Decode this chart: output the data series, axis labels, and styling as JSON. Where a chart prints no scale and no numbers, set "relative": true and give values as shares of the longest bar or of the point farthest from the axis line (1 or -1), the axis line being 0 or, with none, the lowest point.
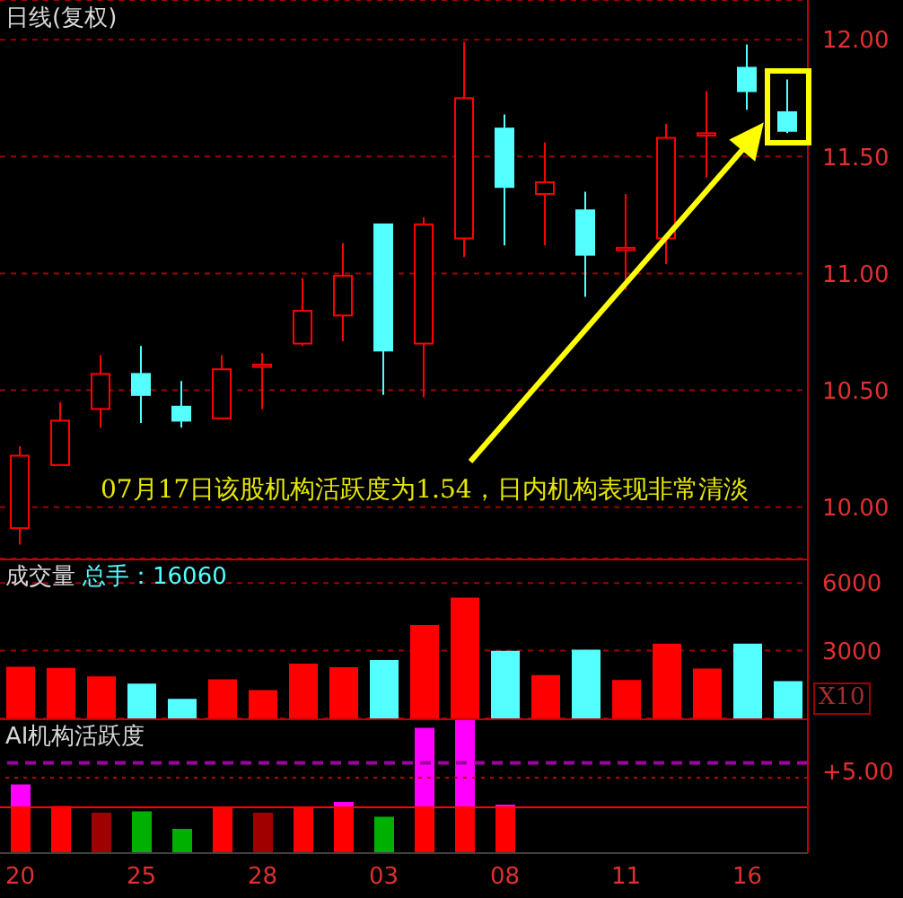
{
  "chart_data": [
    {
      "type": "candlestick",
      "title": "日线(复权)",
      "categories": [
        "20",
        null,
        null,
        "25",
        null,
        null,
        "28",
        null,
        null,
        "03",
        null,
        null,
        "08",
        null,
        null,
        "11",
        null,
        null,
        "16",
        null
      ],
      "ohlc": [
        [
          9.91,
          10.26,
          9.84,
          10.22
        ],
        [
          10.18,
          10.45,
          10.18,
          10.37
        ],
        [
          10.42,
          10.65,
          10.34,
          10.57
        ],
        [
          10.57,
          10.69,
          10.36,
          10.48
        ],
        [
          10.43,
          10.54,
          10.34,
          10.37
        ],
        [
          10.38,
          10.65,
          10.38,
          10.59
        ],
        [
          10.6,
          10.66,
          10.42,
          10.61
        ],
        [
          10.7,
          10.98,
          10.69,
          10.84
        ],
        [
          10.82,
          11.13,
          10.71,
          10.99
        ],
        [
          11.21,
          11.21,
          10.48,
          10.67
        ],
        [
          10.7,
          11.24,
          10.47,
          11.21
        ],
        [
          11.15,
          11.99,
          11.07,
          11.75
        ],
        [
          11.62,
          11.68,
          11.12,
          11.37
        ],
        [
          11.34,
          11.56,
          11.12,
          11.39
        ],
        [
          11.27,
          11.35,
          10.9,
          11.08
        ],
        [
          11.1,
          11.34,
          10.93,
          11.11
        ],
        [
          11.15,
          11.64,
          11.04,
          11.58
        ],
        [
          11.59,
          11.78,
          11.41,
          11.6
        ],
        [
          11.88,
          11.98,
          11.7,
          11.78
        ],
        [
          11.69,
          11.83,
          11.6,
          11.61
        ]
      ],
      "colors": [
        "#ff0000",
        "#ff0000",
        "#ff0000",
        "#54ffff",
        "#54ffff",
        "#ff0000",
        "#ff0000",
        "#ff0000",
        "#ff0000",
        "#54ffff",
        "#ff0000",
        "#ff0000",
        "#54ffff",
        "#ff0000",
        "#54ffff",
        "#ff0000",
        "#ff0000",
        "#ff0000",
        "#54ffff",
        "#54ffff"
      ],
      "ylim": [
        9.78,
        12.17
      ],
      "yticks": [
        {
          "value": 10,
          "label": "10.00"
        },
        {
          "value": 10.5,
          "label": "10.50"
        },
        {
          "value": 11,
          "label": "11.00"
        },
        {
          "value": 11.5,
          "label": "11.50"
        },
        {
          "value": 12,
          "label": "12.00"
        }
      ],
      "grid": "y",
      "tick_labels": "y",
      "annotations": [
        "07月17日该股机构活跃度为1.54，日内机构表现非常清淡"
      ]
    },
    {
      "type": "bar",
      "title": "成交量",
      "subtitle": "总手：16060",
      "categories": [
        "20",
        null,
        null,
        "25",
        null,
        null,
        "28",
        null,
        null,
        "03",
        null,
        null,
        "08",
        null,
        null,
        "11",
        null,
        null,
        "16",
        null
      ],
      "values": [
        2250,
        2200,
        1820,
        1500,
        830,
        1690,
        1210,
        2390,
        2230,
        2550,
        4100,
        5310,
        2950,
        1880,
        3000,
        1660,
        3270,
        2170,
        3270,
        1610
      ],
      "colors": [
        "#ff0000",
        "#ff0000",
        "#ff0000",
        "#54ffff",
        "#54ffff",
        "#ff0000",
        "#ff0000",
        "#ff0000",
        "#ff0000",
        "#54ffff",
        "#ff0000",
        "#ff0000",
        "#54ffff",
        "#ff0000",
        "#54ffff",
        "#ff0000",
        "#ff0000",
        "#ff0000",
        "#54ffff",
        "#54ffff"
      ],
      "ylim": [
        0,
        7080
      ],
      "yticks": [
        3000,
        6000
      ],
      "grid": "y",
      "tick_labels": "y",
      "annotations": [
        "X10"
      ]
    },
    {
      "type": "bar",
      "title": "AI机构活跃度",
      "categories": [
        "20",
        null,
        null,
        "25",
        null,
        null,
        "28",
        null,
        null,
        "03",
        null,
        null,
        "08",
        null,
        null,
        "11",
        null,
        null,
        "16",
        null
      ],
      "relative": true,
      "stacked": true,
      "tick_labels": "x",
      "series": [
        {
          "colors": [
            "#ff0000",
            "#ff0000",
            "#a00000",
            "#00b000",
            "#00b000",
            "#ff0000",
            "#a00000",
            "#ff0000",
            "#ff0000",
            "#00b000",
            "#ff0000",
            "#ff0000",
            "#ff0000",
            null,
            null,
            null,
            null,
            null,
            null,
            null
          ],
          "values": [
            0.34,
            0.35,
            0.3,
            0.31,
            0.18,
            0.34,
            0.3,
            0.34,
            0.34,
            0.27,
            0.34,
            0.34,
            0.34,
            null,
            null,
            null,
            null,
            null,
            null,
            null
          ]
        },
        {
          "color": "#ff00ff",
          "values": [
            0.17,
            0,
            0,
            0,
            0,
            0,
            0,
            0,
            0.04,
            0,
            0.59,
            0.66,
            0.02,
            null,
            null,
            null,
            null,
            null,
            null,
            null
          ]
        }
      ],
      "ref_lines": [
        {
          "axis": "y",
          "value": 0.34,
          "color": "#ff0000",
          "line_style": "solid"
        },
        {
          "axis": "y",
          "value": 0.67,
          "color": "#a000a0",
          "line_style": "dashed"
        },
        {
          "axis": "y",
          "value": 0.56,
          "color": "#c00000",
          "line_style": "dotted"
        }
      ],
      "annotations": [
        "+5.00"
      ]
    }
  ]
}
